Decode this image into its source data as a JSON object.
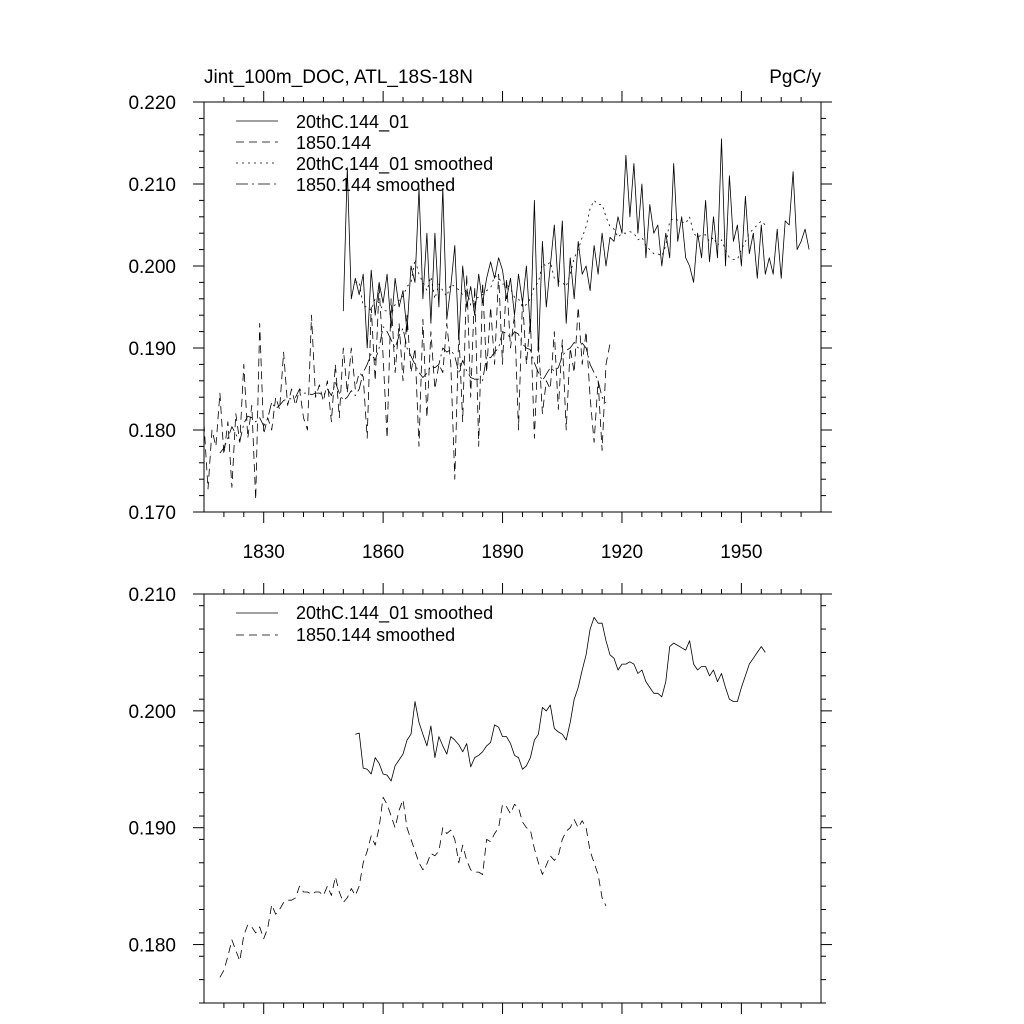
{
  "chart_data": [
    {
      "type": "line",
      "title": "Jint_100m_DOC, ATL_18S-18N",
      "units": "PgC/y",
      "xlim": [
        1815,
        1970
      ],
      "ylim": [
        0.17,
        0.22
      ],
      "xticks": [
        1830,
        1860,
        1890,
        1920,
        1950
      ],
      "xtick_labels": [
        "1830",
        "1860",
        "1890",
        "1920",
        "1950"
      ],
      "yticks": [
        0.17,
        0.18,
        0.19,
        0.2,
        0.21,
        0.22
      ],
      "ytick_labels": [
        "0.170",
        "0.180",
        "0.190",
        "0.200",
        "0.210",
        "0.220"
      ],
      "legend": [
        "20thC.144_01",
        "1850.144",
        "20thC.144_01 smoothed",
        "1850.144 smoothed"
      ],
      "series": [
        {
          "name": "20thC.144_01",
          "dash": "solid",
          "x0": 1850,
          "values": [
            0.1945,
            0.212,
            0.196,
            0.1985,
            0.1965,
            0.199,
            0.19,
            0.1995,
            0.194,
            0.198,
            0.1955,
            0.199,
            0.1925,
            0.1985,
            0.195,
            0.197,
            0.192,
            0.2,
            0.198,
            0.2095,
            0.196,
            0.204,
            0.193,
            0.204,
            0.195,
            0.2095,
            0.1935,
            0.1975,
            0.2025,
            0.191,
            0.2,
            0.195,
            0.1975,
            0.194,
            0.199,
            0.1955,
            0.1985,
            0.2005,
            0.1985,
            0.201,
            0.1995,
            0.196,
            0.1985,
            0.194,
            0.199,
            0.1955,
            0.2,
            0.192,
            0.208,
            0.1895,
            0.203,
            0.195,
            0.2,
            0.205,
            0.1975,
            0.2055,
            0.193,
            0.201,
            0.196,
            0.203,
            0.199,
            0.2,
            0.197,
            0.2025,
            0.199,
            0.204,
            0.2,
            0.2035,
            0.203,
            0.206,
            0.204,
            0.2135,
            0.206,
            0.2125,
            0.204,
            0.21,
            0.201,
            0.2075,
            0.204,
            0.205,
            0.2,
            0.204,
            0.201,
            0.2125,
            0.203,
            0.206,
            0.201,
            0.2,
            0.198,
            0.204,
            0.201,
            0.208,
            0.2005,
            0.206,
            0.201,
            0.2155,
            0.2,
            0.211,
            0.203,
            0.205,
            0.2,
            0.2085,
            0.2015,
            0.204,
            0.1985,
            0.205,
            0.199,
            0.201,
            0.199,
            0.2045,
            0.1985,
            0.2055,
            0.205,
            0.2115,
            0.202,
            0.203,
            0.2045,
            0.202
          ]
        },
        {
          "name": "1850.144",
          "dash": "8,5",
          "x0": 1815,
          "values": [
            0.1808,
            0.1728,
            0.18,
            0.178,
            0.1845,
            0.177,
            0.181,
            0.173,
            0.182,
            0.1785,
            0.188,
            0.179,
            0.183,
            0.1715,
            0.193,
            0.1795,
            0.1815,
            0.18,
            0.184,
            0.1825,
            0.1895,
            0.183,
            0.185,
            0.183,
            0.185,
            0.1815,
            0.18,
            0.194,
            0.184,
            0.1855,
            0.1835,
            0.186,
            0.181,
            0.188,
            0.1815,
            0.19,
            0.1845,
            0.19,
            0.185,
            0.187,
            0.1865,
            0.179,
            0.195,
            0.186,
            0.1975,
            0.189,
            0.179,
            0.196,
            0.187,
            0.193,
            0.186,
            0.194,
            0.187,
            0.19,
            0.178,
            0.1935,
            0.1815,
            0.192,
            0.185,
            0.188,
            0.187,
            0.193,
            0.188,
            0.174,
            0.192,
            0.181,
            0.199,
            0.184,
            0.1975,
            0.178,
            0.198,
            0.187,
            0.195,
            0.188,
            0.199,
            0.188,
            0.1985,
            0.19,
            0.194,
            0.18,
            0.196,
            0.188,
            0.1935,
            0.179,
            0.191,
            0.182,
            0.186,
            0.185,
            0.192,
            0.1825,
            0.191,
            0.18,
            0.19,
            0.187,
            0.195,
            0.188,
            0.192,
            0.184,
            0.1785,
            0.186,
            0.1775,
            0.188,
            0.1905
          ]
        },
        {
          "name": "20thC.144_01 smoothed",
          "dash": "2,4",
          "x0": 1853,
          "values": [
            0.198,
            0.1981,
            0.1951,
            0.195,
            0.1946,
            0.196,
            0.1955,
            0.1946,
            0.1945,
            0.194,
            0.1953,
            0.1958,
            0.1963,
            0.1975,
            0.198,
            0.2008,
            0.199,
            0.198,
            0.197,
            0.1987,
            0.196,
            0.1978,
            0.197,
            0.1963,
            0.1978,
            0.1975,
            0.1971,
            0.1965,
            0.1972,
            0.1952,
            0.196,
            0.1962,
            0.1965,
            0.197,
            0.1973,
            0.1988,
            0.1986,
            0.1978,
            0.1978,
            0.1972,
            0.1962,
            0.196,
            0.195,
            0.1953,
            0.196,
            0.1975,
            0.198,
            0.2003,
            0.2,
            0.2005,
            0.1985,
            0.1982,
            0.198,
            0.1975,
            0.199,
            0.201,
            0.202,
            0.2035,
            0.2048,
            0.207,
            0.208,
            0.2075,
            0.2075,
            0.206,
            0.2048,
            0.2045,
            0.2035,
            0.204,
            0.204,
            0.2042,
            0.204,
            0.2032,
            0.2035,
            0.2025,
            0.202,
            0.2015,
            0.2015,
            0.2012,
            0.2025,
            0.2055,
            0.2058,
            0.2056,
            0.2054,
            0.2052,
            0.206,
            0.204,
            0.2035,
            0.2038,
            0.2038,
            0.203,
            0.2035,
            0.2025,
            0.2032,
            0.202,
            0.201,
            0.2008,
            0.2008,
            0.202,
            0.203,
            0.204,
            0.2045,
            0.205,
            0.2055,
            0.205
          ]
        },
        {
          "name": "1850.144 smoothed",
          "dash": "12,4,2,4",
          "x0": 1819,
          "values": [
            0.1772,
            0.1778,
            0.179,
            0.1804,
            0.1795,
            0.1786,
            0.1808,
            0.1817,
            0.1815,
            0.181,
            0.1815,
            0.1805,
            0.1814,
            0.1834,
            0.1826,
            0.183,
            0.1836,
            0.1838,
            0.1838,
            0.184,
            0.185,
            0.1845,
            0.1845,
            0.1843,
            0.1845,
            0.1845,
            0.1842,
            0.185,
            0.1842,
            0.1858,
            0.1845,
            0.1836,
            0.184,
            0.1848,
            0.1842,
            0.185,
            0.187,
            0.188,
            0.1893,
            0.1885,
            0.19,
            0.1926,
            0.192,
            0.191,
            0.19,
            0.1915,
            0.1924,
            0.19,
            0.189,
            0.188,
            0.187,
            0.1864,
            0.1869,
            0.1878,
            0.1876,
            0.188,
            0.19,
            0.1895,
            0.1898,
            0.189,
            0.187,
            0.1885,
            0.1872,
            0.1864,
            0.1862,
            0.1862,
            0.186,
            0.189,
            0.1888,
            0.1895,
            0.19,
            0.192,
            0.1918,
            0.1912,
            0.192,
            0.1917,
            0.1905,
            0.19,
            0.1898,
            0.1882,
            0.187,
            0.186,
            0.1868,
            0.1876,
            0.1872,
            0.1876,
            0.189,
            0.1897,
            0.19,
            0.1907,
            0.19,
            0.1906,
            0.19,
            0.188,
            0.187,
            0.186,
            0.184,
            0.1833
          ]
        }
      ]
    },
    {
      "type": "line",
      "xlim": [
        1815,
        1970
      ],
      "ylim": [
        0.175,
        0.21
      ],
      "xticks": [
        1830,
        1860,
        1890,
        1920,
        1950
      ],
      "yticks": [
        0.18,
        0.19,
        0.2,
        0.21
      ],
      "ytick_labels": [
        "0.180",
        "0.190",
        "0.200",
        "0.210"
      ],
      "legend": [
        "20thC.144_01 smoothed",
        "1850.144 smoothed"
      ],
      "series": [
        {
          "name": "20thC.144_01 smoothed",
          "dash": "solid",
          "x0": 1853,
          "values": [
            0.198,
            0.1981,
            0.1951,
            0.195,
            0.1946,
            0.196,
            0.1955,
            0.1946,
            0.1945,
            0.194,
            0.1953,
            0.1958,
            0.1963,
            0.1975,
            0.198,
            0.2008,
            0.199,
            0.198,
            0.197,
            0.1987,
            0.196,
            0.1978,
            0.197,
            0.1963,
            0.1978,
            0.1975,
            0.1971,
            0.1965,
            0.1972,
            0.1952,
            0.196,
            0.1962,
            0.1965,
            0.197,
            0.1973,
            0.1988,
            0.1986,
            0.1978,
            0.1978,
            0.1972,
            0.1962,
            0.196,
            0.195,
            0.1953,
            0.196,
            0.1975,
            0.198,
            0.2003,
            0.2,
            0.2005,
            0.1985,
            0.1982,
            0.198,
            0.1975,
            0.199,
            0.201,
            0.202,
            0.2035,
            0.2048,
            0.207,
            0.208,
            0.2075,
            0.2075,
            0.206,
            0.2048,
            0.2045,
            0.2035,
            0.204,
            0.204,
            0.2042,
            0.204,
            0.2032,
            0.2035,
            0.2025,
            0.202,
            0.2015,
            0.2015,
            0.2012,
            0.2025,
            0.2055,
            0.2058,
            0.2056,
            0.2054,
            0.2052,
            0.206,
            0.204,
            0.2035,
            0.2038,
            0.2038,
            0.203,
            0.2035,
            0.2025,
            0.2032,
            0.202,
            0.201,
            0.2008,
            0.2008,
            0.202,
            0.203,
            0.204,
            0.2045,
            0.205,
            0.2055,
            0.205
          ]
        },
        {
          "name": "1850.144 smoothed",
          "dash": "8,5",
          "x0": 1819,
          "values": [
            0.1772,
            0.1778,
            0.179,
            0.1804,
            0.1795,
            0.1786,
            0.1808,
            0.1817,
            0.1815,
            0.181,
            0.1815,
            0.1805,
            0.1814,
            0.1834,
            0.1826,
            0.183,
            0.1836,
            0.1838,
            0.1838,
            0.184,
            0.185,
            0.1845,
            0.1845,
            0.1843,
            0.1845,
            0.1845,
            0.1842,
            0.185,
            0.1842,
            0.1858,
            0.1845,
            0.1836,
            0.184,
            0.1848,
            0.1842,
            0.185,
            0.187,
            0.188,
            0.1893,
            0.1885,
            0.19,
            0.1926,
            0.192,
            0.191,
            0.19,
            0.1915,
            0.1924,
            0.19,
            0.189,
            0.188,
            0.187,
            0.1864,
            0.1869,
            0.1878,
            0.1876,
            0.188,
            0.19,
            0.1895,
            0.1898,
            0.189,
            0.187,
            0.1885,
            0.1872,
            0.1864,
            0.1862,
            0.1862,
            0.186,
            0.189,
            0.1888,
            0.1895,
            0.19,
            0.192,
            0.1918,
            0.1912,
            0.192,
            0.1917,
            0.1905,
            0.19,
            0.1898,
            0.1882,
            0.187,
            0.186,
            0.1868,
            0.1876,
            0.1872,
            0.1876,
            0.189,
            0.1897,
            0.19,
            0.1907,
            0.19,
            0.1906,
            0.19,
            0.188,
            0.187,
            0.186,
            0.184,
            0.1833
          ]
        }
      ]
    }
  ]
}
